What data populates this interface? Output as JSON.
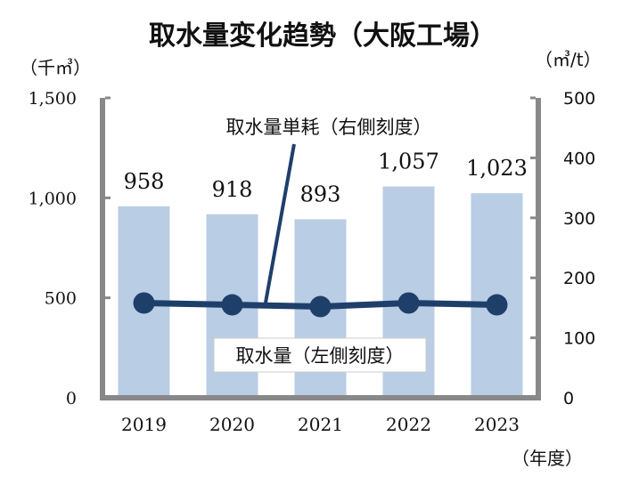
{
  "chart_data": {
    "type": "bar",
    "title": "取水量変化趋勢（大阪工場）",
    "categories": [
      "2019",
      "2020",
      "2021",
      "2022",
      "2023"
    ],
    "xlabel": "（年度）",
    "left_axis": {
      "unit": "（千㎥）",
      "ticks": [
        "1,500",
        "1,000",
        "500",
        "0"
      ],
      "tick_values": [
        1500,
        1000,
        500,
        0
      ],
      "ylim": [
        0,
        1500
      ]
    },
    "right_axis": {
      "unit": "（㎥/t）",
      "ticks": [
        "500",
        "400",
        "300",
        "200",
        "100",
        "0"
      ],
      "tick_values": [
        500,
        400,
        300,
        200,
        100,
        0
      ],
      "ylim": [
        0,
        500
      ]
    },
    "series": [
      {
        "name": "取水量（左側刻度）",
        "type": "bar",
        "axis": "left",
        "values": [
          958,
          918,
          893,
          1057,
          1023
        ],
        "labels": [
          "958",
          "918",
          "893",
          "1,057",
          "1,023"
        ],
        "color": "#b9cde5"
      },
      {
        "name": "取水量単耗（右側刻度）",
        "type": "line",
        "axis": "right",
        "values": [
          158,
          155,
          152,
          158,
          155
        ],
        "color": "#1f3f6b"
      }
    ],
    "grid": false
  }
}
